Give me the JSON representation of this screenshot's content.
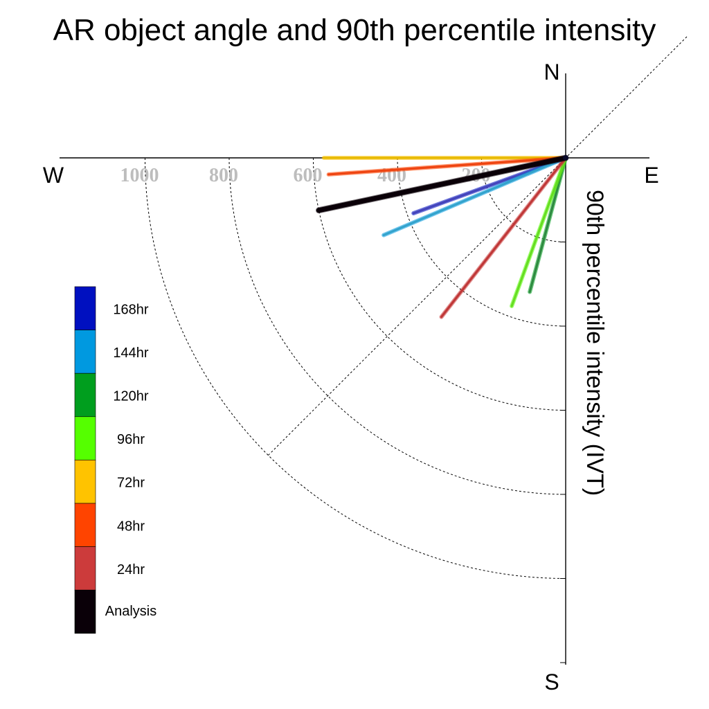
{
  "chart_data": {
    "type": "polar-vector",
    "title": "AR object angle and 90th percentile intensity",
    "axis_title": "90th percentile intensity (IVT)",
    "compass": {
      "north": "N",
      "south": "S",
      "east": "E",
      "west": "W"
    },
    "radial_ticks": [
      200,
      400,
      600,
      800,
      1000
    ],
    "radial_tick_labels": [
      "200",
      "400",
      "600",
      "800",
      "1000"
    ],
    "radial_max": 1200,
    "grid": "dashed quarter-circles and diagonal guide",
    "legend_position": "left",
    "series": [
      {
        "name": "168hr",
        "color": "#0010c0",
        "draw": "#4444bb",
        "angle_deg": 200,
        "intensity": 385
      },
      {
        "name": "144hr",
        "color": "#0099e0",
        "draw": "#33a3cc",
        "angle_deg": 203,
        "intensity": 470
      },
      {
        "name": "120hr",
        "color": "#009e1e",
        "draw": "#2e8b40",
        "angle_deg": 255,
        "intensity": 330
      },
      {
        "name": "96hr",
        "color": "#55ff00",
        "draw": "#66dd22",
        "angle_deg": 250,
        "intensity": 375
      },
      {
        "name": "72hr",
        "color": "#ffc300",
        "draw": "#e6b800",
        "angle_deg": 180,
        "intensity": 575
      },
      {
        "name": "48hr",
        "color": "#ff4400",
        "draw": "#ee4411",
        "angle_deg": 184,
        "intensity": 565
      },
      {
        "name": "24hr",
        "color": "#cc3b3b",
        "draw": "#c03838",
        "angle_deg": 232,
        "intensity": 480
      },
      {
        "name": "Analysis",
        "color": "#0a0008",
        "draw": "#0a0008",
        "angle_deg": 192,
        "intensity": 600
      }
    ]
  }
}
